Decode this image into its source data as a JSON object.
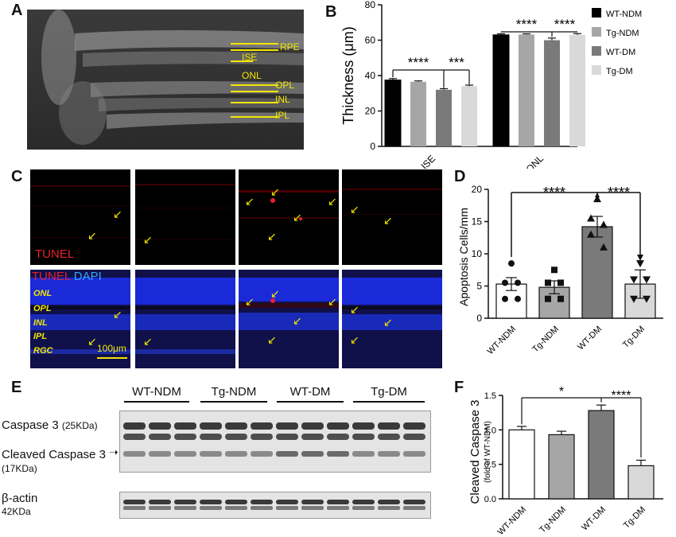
{
  "panels": {
    "A": "A",
    "B": "B",
    "C": "C",
    "D": "D",
    "E": "E",
    "F": "F"
  },
  "panel_a": {
    "layers": [
      "RPE",
      "ISE",
      "ONL",
      "OPL",
      "INL",
      "IPL"
    ]
  },
  "panel_b": {
    "legend": [
      "WT-NDM",
      "Tg-NDM",
      "WT-DM",
      "Tg-DM"
    ],
    "legend_colors": [
      "#000000",
      "#a6a6a6",
      "#7a7a7a",
      "#d9d9d9"
    ],
    "ylabel": "Thickness (μm)",
    "yticks": [
      "0",
      "20",
      "40",
      "60",
      "80"
    ],
    "sig_ise": [
      "****",
      "***"
    ],
    "sig_onl": [
      "****",
      "****"
    ]
  },
  "panel_c": {
    "tunel_label": "TUNEL",
    "merge_tunel": "TUNEL",
    "merge_dapi": "DAPI",
    "layers": [
      "ONL",
      "OPL",
      "INL",
      "IPL",
      "RGC"
    ],
    "scalebar": "100μm"
  },
  "panel_d": {
    "sig": [
      "****",
      "****"
    ]
  },
  "panel_e": {
    "groups": [
      "WT-NDM",
      "Tg-NDM",
      "WT-DM",
      "Tg-DM"
    ],
    "label_casp3": "Caspase 3",
    "label_casp3_kda": "(25KDa)",
    "label_cleaved": "Cleaved Caspase 3",
    "label_cleaved_kda": "(17KDa)",
    "label_actin": "β-actin",
    "label_actin_kda": "42KDa"
  },
  "panel_f": {
    "sig": [
      "*",
      "****"
    ]
  },
  "chart_data": [
    {
      "type": "bar",
      "panel": "B",
      "categories": [
        "ISE",
        "ONL"
      ],
      "series": [
        {
          "name": "WT-NDM",
          "values": [
            37.5,
            63.0
          ],
          "errors": [
            0.8,
            0.6
          ]
        },
        {
          "name": "Tg-NDM",
          "values": [
            36.5,
            63.2
          ],
          "errors": [
            0.5,
            0.4
          ]
        },
        {
          "name": "WT-DM",
          "values": [
            32.0,
            60.0
          ],
          "errors": [
            0.6,
            1.2
          ]
        },
        {
          "name": "Tg-DM",
          "values": [
            34.0,
            63.0
          ],
          "errors": [
            0.6,
            0.7
          ]
        }
      ],
      "ylabel": "Thickness (μm)",
      "ylim": [
        0,
        80
      ],
      "legend": "right"
    },
    {
      "type": "bar",
      "panel": "D",
      "categories": [
        "WT-NDM",
        "Tg-NDM",
        "WT-DM",
        "Tg-DM"
      ],
      "values": [
        5.3,
        4.8,
        14.2,
        5.3
      ],
      "errors": [
        1.0,
        1.0,
        1.6,
        2.2
      ],
      "points": [
        [
          8.5,
          5.5,
          5.5,
          3.0,
          3.0
        ],
        [
          7.5,
          5.5,
          5.5,
          3.0,
          3.0
        ],
        [
          18.5,
          15.5,
          14.5,
          13.0,
          11.0
        ],
        [
          8.5,
          6.0,
          6.0,
          3.0,
          3.0
        ]
      ],
      "colors": [
        "#ffffff",
        "#a6a6a6",
        "#7a7a7a",
        "#d9d9d9"
      ],
      "ylabel": "Apoptosis Cells/mm",
      "yticks": [
        "0",
        "5",
        "10",
        "15",
        "20"
      ],
      "ylim": [
        0,
        20
      ]
    },
    {
      "type": "bar",
      "panel": "F",
      "categories": [
        "WT-NDM",
        "Tg-NDM",
        "WT-DM",
        "Tg-DM"
      ],
      "values": [
        1.0,
        0.93,
        1.28,
        0.48
      ],
      "errors": [
        0.05,
        0.05,
        0.08,
        0.08
      ],
      "colors": [
        "#ffffff",
        "#a6a6a6",
        "#7a7a7a",
        "#d9d9d9"
      ],
      "ylabel": "Cleaved Caspase 3",
      "ylabel_sub": "(fold of WT-NDM)",
      "yticks": [
        "0.0",
        "0.5",
        "1.0",
        "1.5"
      ],
      "ylim": [
        0,
        1.5
      ]
    }
  ]
}
